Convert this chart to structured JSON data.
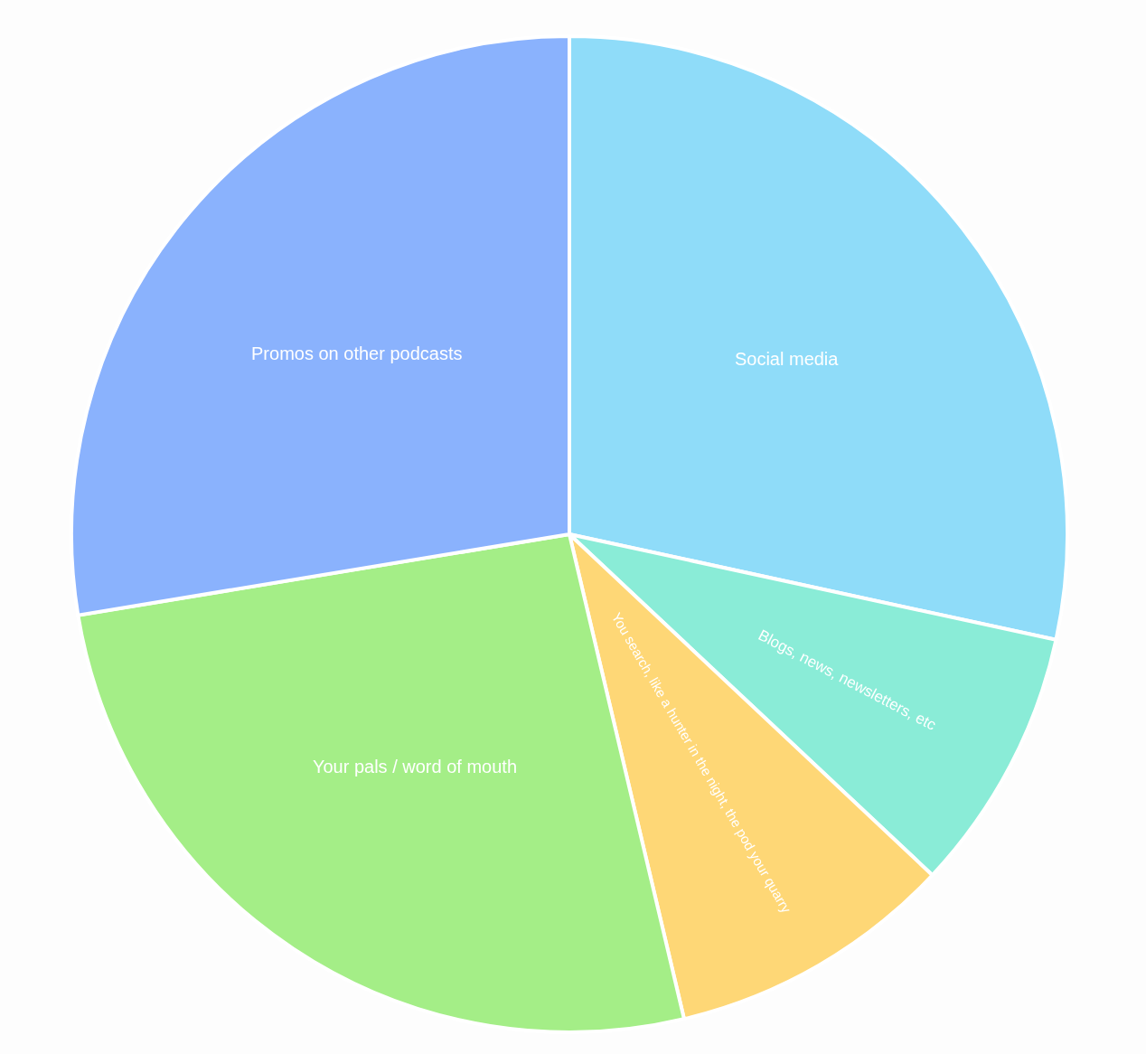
{
  "chart_data": {
    "type": "pie",
    "categories": [
      "Social media",
      "Blogs, news, newsletters, etc",
      "You search, like a hunter in the night, the pod your quarry",
      "Your pals / word of mouth",
      "Promos on other podcasts"
    ],
    "values": [
      28.4,
      8.6,
      9.3,
      26.1,
      27.6
    ],
    "colors": [
      "#8fdcf9",
      "#8aecd7",
      "#fed776",
      "#a4ee87",
      "#8ab2fd"
    ]
  }
}
